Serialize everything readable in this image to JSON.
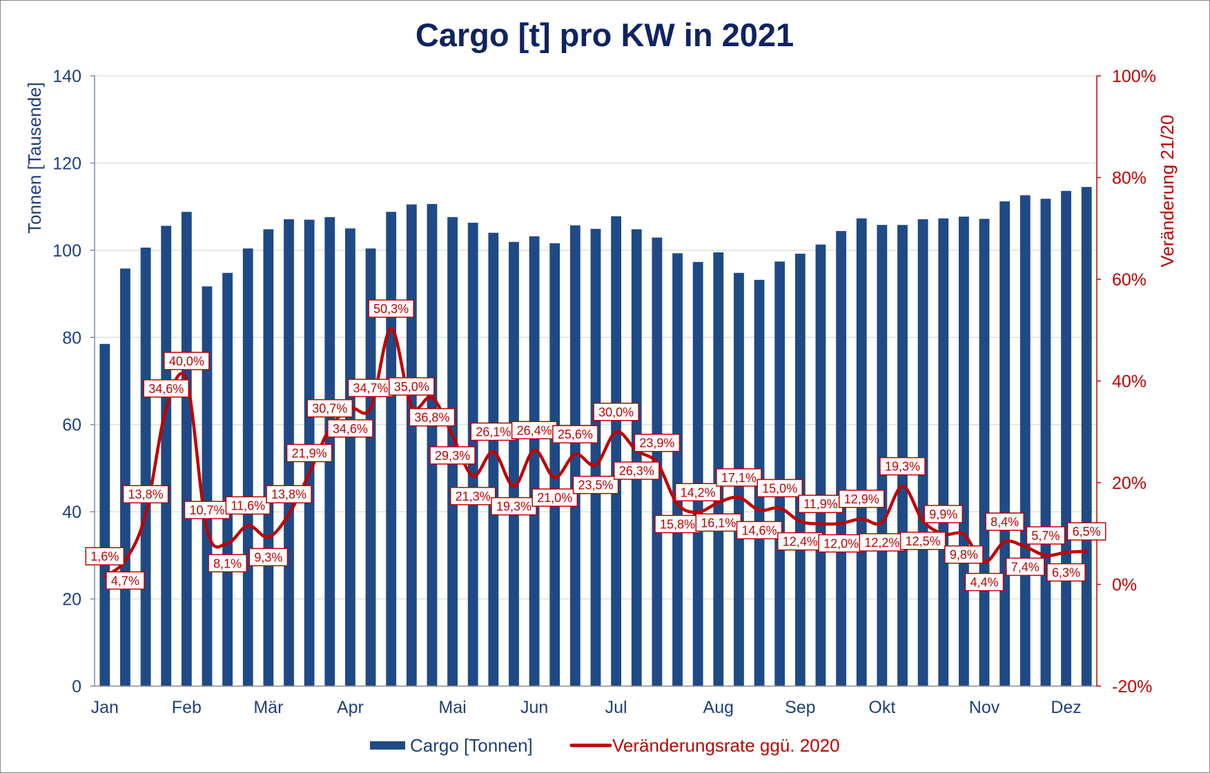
{
  "colors": {
    "bar": "#1F4A86",
    "line": "#C00000",
    "title": "#0E2461",
    "axis_text": "#1F3F7A",
    "left_axis_line": "#7A8AA6",
    "x_axis_line": "#8C8C8C",
    "grid": "#D9D9D9",
    "label_box": "#FFFFFF",
    "border": "#868686"
  },
  "chart_data": {
    "type": "bar",
    "title": "Cargo [t] pro KW in 2021",
    "xlabel": "",
    "ylabel": "Tonnen [Tausende]",
    "y2label": "Veränderung 21/20",
    "ylim": [
      0,
      140
    ],
    "y2lim": [
      -20,
      100
    ],
    "yticks": [
      {
        "value": 0,
        "label": "0"
      },
      {
        "value": 20,
        "label": "20"
      },
      {
        "value": 40,
        "label": "40"
      },
      {
        "value": 60,
        "label": "60"
      },
      {
        "value": 80,
        "label": "80"
      },
      {
        "value": 100,
        "label": "100"
      },
      {
        "value": 120,
        "label": "120"
      },
      {
        "value": 140,
        "label": "140"
      }
    ],
    "y2ticks": [
      {
        "value": -20,
        "label": "-20%"
      },
      {
        "value": 0,
        "label": "0%"
      },
      {
        "value": 20,
        "label": "20%"
      },
      {
        "value": 40,
        "label": "40%"
      },
      {
        "value": 60,
        "label": "60%"
      },
      {
        "value": 80,
        "label": "80%"
      },
      {
        "value": 100,
        "label": "100%"
      }
    ],
    "grid": true,
    "legend": "bottom",
    "categories": [
      "Jan",
      "",
      "",
      "",
      "Feb",
      "",
      "",
      "",
      "Mär",
      "",
      "",
      "",
      "Apr",
      "",
      "",
      "",
      "",
      "Mai",
      "",
      "",
      "",
      "Jun",
      "",
      "",
      "",
      "Jul",
      "",
      "",
      "",
      "",
      "Aug",
      "",
      "",
      "",
      "Sep",
      "",
      "",
      "",
      "Okt",
      "",
      "",
      "",
      "",
      "Nov",
      "",
      "",
      "",
      "Dez",
      ""
    ],
    "series": [
      {
        "name": "Cargo [Tonnen]",
        "type": "bar",
        "axis": "left",
        "values": [
          78.5,
          95.8,
          100.6,
          105.6,
          108.8,
          91.7,
          94.8,
          100.4,
          104.8,
          107.1,
          107.0,
          107.6,
          105.0,
          100.4,
          108.8,
          110.5,
          110.6,
          107.6,
          106.3,
          104.0,
          101.9,
          103.2,
          101.6,
          105.7,
          104.9,
          107.8,
          104.8,
          102.9,
          99.3,
          97.3,
          99.5,
          94.8,
          93.2,
          97.4,
          99.2,
          101.3,
          104.4,
          107.3,
          105.8,
          105.8,
          107.1,
          107.3,
          107.7,
          107.2,
          111.2,
          112.6,
          111.8,
          113.6,
          114.5
        ]
      },
      {
        "name": "Veränderungsrate ggü. 2020",
        "type": "line",
        "axis": "right",
        "smooth": true,
        "values": [
          1.6,
          4.7,
          13.8,
          34.6,
          40.0,
          10.7,
          8.1,
          11.6,
          9.3,
          13.8,
          21.9,
          30.7,
          34.6,
          34.7,
          50.3,
          35.0,
          36.8,
          29.3,
          21.3,
          26.1,
          19.3,
          26.4,
          21.0,
          25.6,
          23.5,
          30.0,
          26.3,
          23.9,
          15.8,
          14.2,
          16.1,
          17.1,
          14.6,
          15.0,
          12.4,
          11.9,
          12.0,
          12.9,
          12.2,
          19.3,
          12.5,
          9.9,
          9.8,
          4.4,
          8.4,
          7.4,
          5.7,
          6.3,
          6.5
        ],
        "labels": [
          "1,6%",
          "4,7%",
          "13,8%",
          "34,6%",
          "40,0%",
          "10,7%",
          "8,1%",
          "11,6%",
          "9,3%",
          "13,8%",
          "21,9%",
          "30,7%",
          "34,6%",
          "34,7%",
          "50,3%",
          "35,0%",
          "36,8%",
          "29,3%",
          "21,3%",
          "26,1%",
          "19,3%",
          "26,4%",
          "21,0%",
          "25,6%",
          "23,5%",
          "30,0%",
          "26,3%",
          "23,9%",
          "15,8%",
          "14,2%",
          "16,1%",
          "17,1%",
          "14,6%",
          "15,0%",
          "12,4%",
          "11,9%",
          "12,0%",
          "12,9%",
          "12,2%",
          "19,3%",
          "12,5%",
          "9,9%",
          "9,8%",
          "4,4%",
          "8,4%",
          "7,4%",
          "5,7%",
          "6,3%",
          "6,5%"
        ]
      }
    ]
  }
}
